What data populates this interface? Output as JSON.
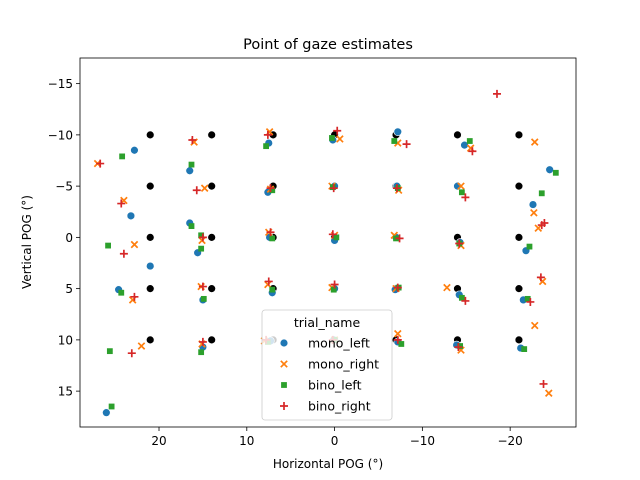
{
  "chart_data": {
    "type": "scatter",
    "title": "Point of gaze estimates",
    "xlabel": "Horizontal POG (°)",
    "ylabel": "Vertical POG (°)",
    "xlim": [
      29,
      -27.5
    ],
    "ylim": [
      -17.5,
      18.5
    ],
    "x_inverted": true,
    "y_inverted": true,
    "x_ticks": [
      20,
      10,
      0,
      -10,
      -20
    ],
    "x_tick_labels": [
      "20",
      "10",
      "0",
      "−10",
      "−20"
    ],
    "y_ticks": [
      -15,
      -10,
      -5,
      0,
      5,
      10,
      15
    ],
    "y_tick_labels": [
      "−15",
      "−10",
      "−5",
      "0",
      "5",
      "10",
      "15"
    ],
    "grid": false,
    "legend": {
      "title": "trial_name",
      "placement": "lower-center",
      "entries": [
        {
          "name": "mono_left",
          "marker": "circle",
          "color": "#1f77b4"
        },
        {
          "name": "mono_right",
          "marker": "x",
          "color": "#ff7f0e"
        },
        {
          "name": "bino_left",
          "marker": "square",
          "color": "#2ca02c"
        },
        {
          "name": "bino_right",
          "marker": "plus",
          "color": "#d62728"
        }
      ]
    },
    "targets": {
      "color": "#000000",
      "marker": "circle",
      "points": [
        [
          21,
          -10
        ],
        [
          14,
          -10
        ],
        [
          7,
          -10
        ],
        [
          0,
          -10
        ],
        [
          -7,
          -10
        ],
        [
          -14,
          -10
        ],
        [
          -21,
          -10
        ],
        [
          21,
          -5
        ],
        [
          14,
          -5
        ],
        [
          7,
          -5
        ],
        [
          0,
          -5
        ],
        [
          -7,
          -5
        ],
        [
          -14,
          -5
        ],
        [
          -21,
          -5
        ],
        [
          21,
          0
        ],
        [
          14,
          0
        ],
        [
          7,
          0
        ],
        [
          0,
          0
        ],
        [
          -7,
          0
        ],
        [
          -14,
          0
        ],
        [
          -21,
          0
        ],
        [
          21,
          5
        ],
        [
          14,
          5
        ],
        [
          7,
          5
        ],
        [
          0,
          5
        ],
        [
          -7,
          5
        ],
        [
          -14,
          5
        ],
        [
          -21,
          5
        ],
        [
          21,
          10
        ],
        [
          14,
          10
        ],
        [
          7,
          10
        ],
        [
          0,
          10
        ],
        [
          -7,
          10
        ],
        [
          -14,
          10
        ],
        [
          -21,
          10
        ]
      ]
    },
    "series": [
      {
        "name": "mono_left",
        "color": "#1f77b4",
        "marker": "circle",
        "points": [
          [
            22.8,
            -8.5
          ],
          [
            16.5,
            -6.5
          ],
          [
            7.5,
            -9.2
          ],
          [
            0.2,
            -9.5
          ],
          [
            -7.2,
            -10.3
          ],
          [
            -14.8,
            -9
          ],
          [
            -24.5,
            -6.6
          ],
          [
            16.5,
            -1.4
          ],
          [
            15.6,
            1.5
          ],
          [
            7.6,
            -4.4
          ],
          [
            0,
            -5
          ],
          [
            -7.1,
            -5
          ],
          [
            -14,
            -5
          ],
          [
            -22.6,
            -3.2
          ],
          [
            23.2,
            -2.1
          ],
          [
            21,
            2.8
          ],
          [
            7.4,
            0
          ],
          [
            0,
            0.3
          ],
          [
            -7,
            0
          ],
          [
            -14.3,
            0.5
          ],
          [
            -21.8,
            1.3
          ],
          [
            24.6,
            5.1
          ],
          [
            15,
            6.1
          ],
          [
            7.1,
            5.4
          ],
          [
            0,
            5
          ],
          [
            -6.9,
            5.1
          ],
          [
            -14.2,
            5.6
          ],
          [
            -21.5,
            6.1
          ],
          [
            26,
            17.1
          ],
          [
            15,
            10.7
          ],
          [
            7.3,
            10.1
          ],
          [
            0.1,
            10
          ],
          [
            -7.2,
            10.2
          ],
          [
            -13.9,
            10.5
          ],
          [
            -21.2,
            10.8
          ]
        ]
      },
      {
        "name": "mono_right",
        "color": "#ff7f0e",
        "marker": "x",
        "points": [
          [
            27,
            -7.2
          ],
          [
            16,
            -9.3
          ],
          [
            7.4,
            -10.3
          ],
          [
            -0.6,
            -9.6
          ],
          [
            -7.2,
            -9.2
          ],
          [
            -15.5,
            -8.7
          ],
          [
            -22.8,
            -9.3
          ],
          [
            24,
            -3.6
          ],
          [
            14.8,
            -4.8
          ],
          [
            7.3,
            -4.7
          ],
          [
            0.3,
            -5
          ],
          [
            -7.3,
            -4.6
          ],
          [
            -14.4,
            -5
          ],
          [
            -22.7,
            -2.4
          ],
          [
            22.8,
            0.7
          ],
          [
            15.1,
            0.3
          ],
          [
            7.5,
            -0.5
          ],
          [
            0,
            -0.2
          ],
          [
            -6.8,
            -0.2
          ],
          [
            -14.4,
            0.8
          ],
          [
            -23.2,
            -0.9
          ],
          [
            23,
            6.1
          ],
          [
            15.2,
            4.8
          ],
          [
            7.6,
            4.6
          ],
          [
            0.3,
            4.9
          ],
          [
            -7,
            5
          ],
          [
            -12.8,
            4.9
          ],
          [
            -23.7,
            4.3
          ],
          [
            22,
            10.6
          ],
          [
            15.1,
            10.4
          ],
          [
            8,
            10.1
          ],
          [
            0,
            10
          ],
          [
            -7.2,
            9.4
          ],
          [
            -14.4,
            11
          ],
          [
            -22.8,
            8.6
          ],
          [
            -24.4,
            15.2
          ]
        ]
      },
      {
        "name": "bino_left",
        "color": "#2ca02c",
        "marker": "square",
        "points": [
          [
            24.2,
            -7.9
          ],
          [
            16.3,
            -7.1
          ],
          [
            7.8,
            -8.9
          ],
          [
            0.3,
            -9.7
          ],
          [
            -6.8,
            -9.4
          ],
          [
            -15.4,
            -9.4
          ],
          [
            -25.2,
            -6.3
          ],
          [
            16.3,
            -1.1
          ],
          [
            15.2,
            -0.2
          ],
          [
            7.1,
            -4.6
          ],
          [
            0.2,
            -4.9
          ],
          [
            -7.2,
            -4.8
          ],
          [
            -14.5,
            -4.4
          ],
          [
            -23.6,
            -4.3
          ],
          [
            25.8,
            0.8
          ],
          [
            15.2,
            1.1
          ],
          [
            7.1,
            0.1
          ],
          [
            -0.2,
            0
          ],
          [
            -7,
            0.1
          ],
          [
            -14.2,
            0.6
          ],
          [
            -22.2,
            0.9
          ],
          [
            24.3,
            5.4
          ],
          [
            14.9,
            6
          ],
          [
            7.1,
            5.1
          ],
          [
            0.1,
            5.1
          ],
          [
            -7.3,
            4.9
          ],
          [
            -14.5,
            5.9
          ],
          [
            -22,
            6
          ],
          [
            25.6,
            11.1
          ],
          [
            15.2,
            11.2
          ],
          [
            7.6,
            10.2
          ],
          [
            0,
            10
          ],
          [
            -7.6,
            10.4
          ],
          [
            -14.3,
            10.6
          ],
          [
            -21.6,
            10.9
          ],
          [
            25.4,
            16.5
          ]
        ]
      },
      {
        "name": "bino_right",
        "color": "#d62728",
        "marker": "plus",
        "points": [
          [
            26.7,
            -7.2
          ],
          [
            16.2,
            -9.5
          ],
          [
            7.6,
            -10
          ],
          [
            -0.3,
            -10.4
          ],
          [
            -8.2,
            -9.1
          ],
          [
            -15.7,
            -8.4
          ],
          [
            -18.5,
            -14
          ],
          [
            24.3,
            -3.3
          ],
          [
            15.7,
            -4.6
          ],
          [
            7.3,
            -4.8
          ],
          [
            0.1,
            -4.8
          ],
          [
            -7.1,
            -4.8
          ],
          [
            -14.9,
            -3.9
          ],
          [
            -23.9,
            -1.4
          ],
          [
            24,
            1.6
          ],
          [
            15,
            0
          ],
          [
            7.3,
            -0.5
          ],
          [
            0.2,
            -0.3
          ],
          [
            -7.4,
            0.1
          ],
          [
            -14.2,
            0.6
          ],
          [
            -23.6,
            -1.2
          ],
          [
            22.8,
            5.8
          ],
          [
            15,
            4.8
          ],
          [
            7.5,
            4.3
          ],
          [
            0,
            4.6
          ],
          [
            -7.2,
            4.9
          ],
          [
            -14.9,
            6.2
          ],
          [
            -22.3,
            6.3
          ],
          [
            23.1,
            11.3
          ],
          [
            15,
            10.2
          ],
          [
            7.8,
            10
          ],
          [
            0.2,
            10
          ],
          [
            -7.2,
            10
          ],
          [
            -14.1,
            10.7
          ],
          [
            -23.5,
            3.9
          ],
          [
            -23.8,
            14.3
          ]
        ]
      }
    ]
  }
}
